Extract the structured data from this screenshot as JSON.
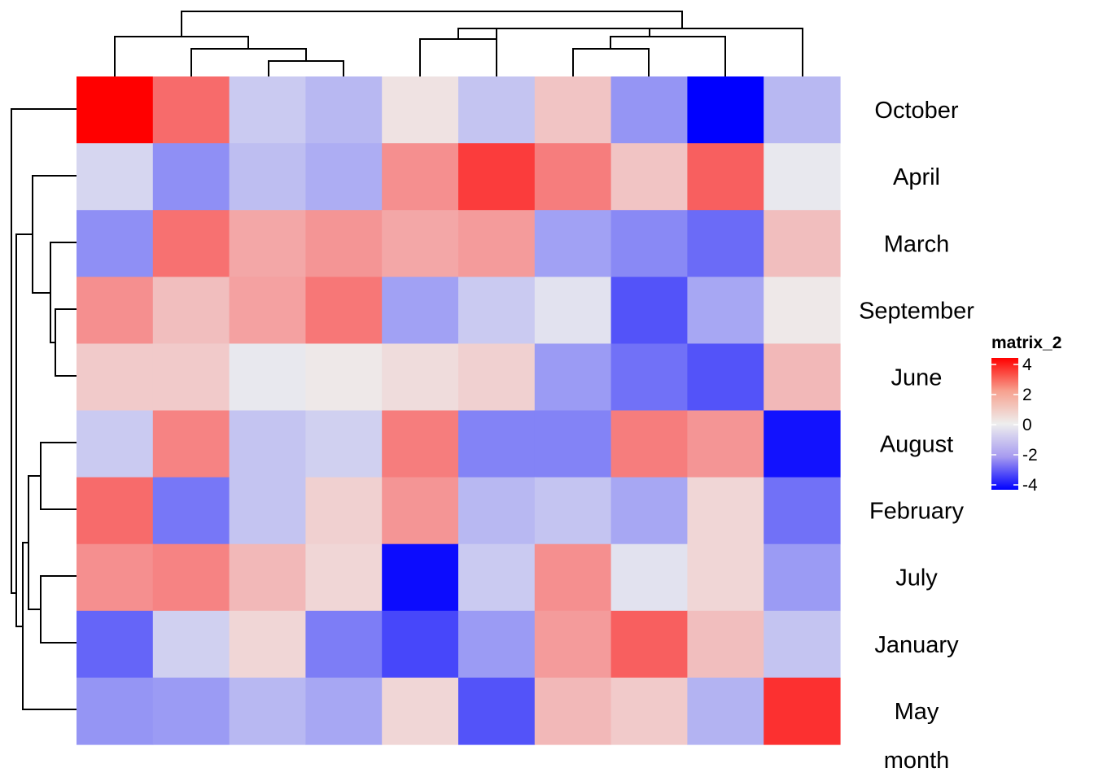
{
  "chart_data": {
    "type": "heatmap",
    "xlabel": "",
    "ylabel": "month",
    "rows": [
      "October",
      "April",
      "March",
      "September",
      "June",
      "August",
      "February",
      "July",
      "January",
      "May"
    ],
    "columns": [
      "",
      "",
      "",
      "",
      "",
      "",
      "",
      "",
      "",
      ""
    ],
    "values": [
      [
        4.0,
        2.2,
        -0.6,
        -0.9,
        0.2,
        -0.7,
        0.7,
        -1.5,
        -4.0,
        -0.9
      ],
      [
        -0.4,
        -1.6,
        -0.8,
        -1.1,
        1.6,
        3.0,
        1.9,
        0.7,
        2.4,
        -0.1
      ],
      [
        -1.6,
        2.1,
        1.2,
        1.5,
        1.2,
        1.4,
        -1.3,
        -1.7,
        -2.2,
        0.8
      ],
      [
        1.6,
        0.8,
        1.3,
        2.0,
        -1.3,
        -0.6,
        -0.2,
        -2.6,
        -1.2,
        0.1
      ],
      [
        0.6,
        0.6,
        -0.1,
        0.1,
        0.3,
        0.5,
        -1.4,
        -2.1,
        -2.6,
        0.9
      ],
      [
        -0.6,
        1.8,
        -0.7,
        -0.5,
        1.9,
        -1.8,
        -1.8,
        1.9,
        1.5,
        -3.7
      ],
      [
        2.2,
        -2.0,
        -0.7,
        0.5,
        1.5,
        -0.9,
        -0.7,
        -1.2,
        0.4,
        -2.1
      ],
      [
        1.6,
        1.8,
        0.9,
        0.4,
        -3.8,
        -0.6,
        1.6,
        -0.2,
        0.4,
        -1.4
      ],
      [
        -2.3,
        -0.5,
        0.4,
        -1.9,
        -2.8,
        -1.4,
        1.4,
        2.4,
        0.8,
        -0.7
      ],
      [
        -1.5,
        -1.4,
        -0.9,
        -1.2,
        0.4,
        -2.6,
        0.9,
        0.6,
        -1.0,
        3.2
      ]
    ],
    "color_scale": {
      "min": -4,
      "mid": 0,
      "max": 4,
      "low_color": "#0000ff",
      "mid_color": "#eeeeee",
      "high_color": "#ff0000"
    },
    "legend": {
      "title": "matrix_2",
      "ticks": [
        4,
        2,
        0,
        -2,
        -4
      ],
      "tick_labels": [
        "4",
        "2",
        "0",
        "-2",
        "-4"
      ],
      "position": "right"
    },
    "row_dendrogram": true,
    "column_dendrogram": true
  }
}
